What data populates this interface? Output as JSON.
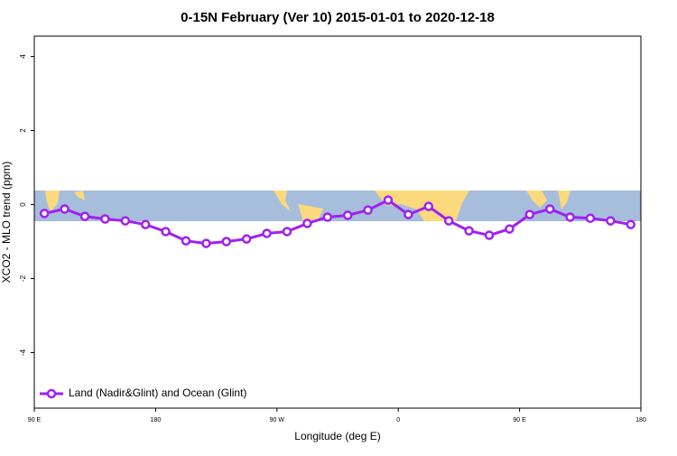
{
  "chart_data": {
    "type": "line",
    "title": "0-15N February (Ver 10)   2015-01-01 to 2020-12-18",
    "x_label": "Longitude (deg E)",
    "y_label": "XCO2 - MLO trend (ppm)",
    "x": [
      97.5,
      112.5,
      127.5,
      142.5,
      157.5,
      172.5,
      187.5,
      202.5,
      217.5,
      232.5,
      247.5,
      262.5,
      277.5,
      292.5,
      307.5,
      322.5,
      337.5,
      352.5,
      367.5,
      382.5,
      397.5,
      412.5,
      427.5,
      442.5,
      457.5,
      472.5,
      487.5,
      502.5,
      517.5,
      532.5
    ],
    "series": [
      {
        "name": "Land (Nadir&Glint) and Ocean (Glint)",
        "color": "#a020f0",
        "values": [
          -0.24,
          -0.12,
          -0.32,
          -0.39,
          -0.44,
          -0.54,
          -0.73,
          -0.98,
          -1.05,
          -1.0,
          -0.93,
          -0.78,
          -0.73,
          -0.51,
          -0.34,
          -0.29,
          -0.15,
          0.12,
          -0.27,
          -0.05,
          -0.44,
          -0.71,
          -0.83,
          -0.66,
          -0.27,
          -0.12,
          -0.34,
          -0.37,
          -0.44,
          -0.54
        ]
      }
    ],
    "xlim": [
      90,
      540
    ],
    "xticks": [
      {
        "value": 90,
        "label": "90 E"
      },
      180,
      {
        "value": 270,
        "label": "90 W"
      },
      {
        "value": 360,
        "label": "0"
      },
      {
        "value": 450,
        "label": "90 E"
      },
      {
        "value": 540,
        "label": "180"
      }
    ],
    "ylim": [
      -5.5,
      4.55
    ],
    "yticks": [
      4,
      2,
      0,
      -2,
      -4
    ],
    "legend_position": "bottom-left"
  }
}
